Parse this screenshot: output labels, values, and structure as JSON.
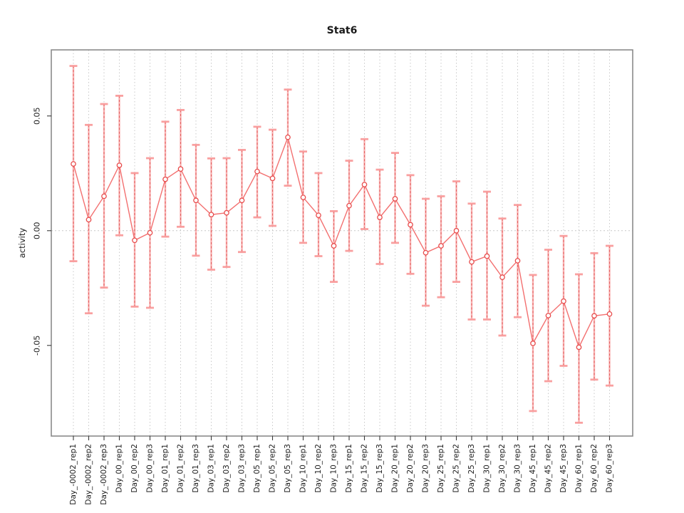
{
  "window": {
    "background": "#ffffff"
  },
  "chart_data": {
    "type": "line",
    "subtype": "points-with-error-bars",
    "title": "Stat6",
    "xlabel": "",
    "ylabel": "activity",
    "legend": null,
    "grid": {
      "vertical": "dotted at every category",
      "horizontal": "dotted at 0.00 only"
    },
    "marker": "open-circle",
    "error_bars": true,
    "ylim": [
      -0.0895,
      0.0788
    ],
    "yticks": [
      -0.05,
      0.0,
      0.05
    ],
    "ytick_labels": [
      "-0.05",
      "0.00",
      "0.05"
    ],
    "categories": [
      "Day_-0002_rep1",
      "Day_-0002_rep2",
      "Day_-0002_rep3",
      "Day_00_rep1",
      "Day_00_rep2",
      "Day_00_rep3",
      "Day_01_rep1",
      "Day_01_rep2",
      "Day_01_rep3",
      "Day_03_rep1",
      "Day_03_rep2",
      "Day_03_rep3",
      "Day_05_rep1",
      "Day_05_rep2",
      "Day_05_rep3",
      "Day_10_rep1",
      "Day_10_rep2",
      "Day_10_rep3",
      "Day_15_rep1",
      "Day_15_rep2",
      "Day_15_rep3",
      "Day_20_rep1",
      "Day_20_rep2",
      "Day_20_rep3",
      "Day_25_rep1",
      "Day_25_rep2",
      "Day_25_rep3",
      "Day_30_rep1",
      "Day_30_rep2",
      "Day_30_rep3",
      "Day_45_rep1",
      "Day_45_rep2",
      "Day_45_rep3",
      "Day_60_rep1",
      "Day_60_rep2",
      "Day_60_rep3"
    ],
    "series": [
      {
        "name": "activity",
        "values": [
          0.0291,
          0.0048,
          0.015,
          0.0285,
          -0.0042,
          -0.0009,
          0.0224,
          0.0269,
          0.0132,
          0.007,
          0.0078,
          0.0132,
          0.0258,
          0.0228,
          0.0407,
          0.0145,
          0.0067,
          -0.0066,
          0.0109,
          0.0201,
          0.0058,
          0.0139,
          0.0026,
          -0.0096,
          -0.0066,
          0.0,
          -0.0136,
          -0.0111,
          -0.0203,
          -0.0131,
          -0.0491,
          -0.037,
          -0.0307,
          -0.0508,
          -0.0371,
          -0.0363
        ],
        "upper": [
          0.0718,
          0.0461,
          0.0552,
          0.0588,
          0.0251,
          0.0316,
          0.0475,
          0.0526,
          0.0374,
          0.0315,
          0.0316,
          0.0352,
          0.0453,
          0.044,
          0.0615,
          0.0345,
          0.0251,
          0.0085,
          0.0305,
          0.0399,
          0.0266,
          0.0339,
          0.0242,
          0.0139,
          0.015,
          0.0215,
          0.0118,
          0.017,
          0.0053,
          0.0112,
          -0.0193,
          -0.0083,
          -0.0023,
          -0.019,
          -0.0098,
          -0.0066
        ],
        "lower": [
          -0.0133,
          -0.036,
          -0.0248,
          -0.002,
          -0.0331,
          -0.0336,
          -0.0026,
          0.0017,
          -0.0109,
          -0.017,
          -0.0158,
          -0.0093,
          0.0058,
          0.0021,
          0.0196,
          -0.0053,
          -0.0111,
          -0.0223,
          -0.0088,
          0.0007,
          -0.0145,
          -0.0053,
          -0.0188,
          -0.0327,
          -0.029,
          -0.0223,
          -0.0387,
          -0.0387,
          -0.0457,
          -0.0377,
          -0.0786,
          -0.0656,
          -0.0589,
          -0.0837,
          -0.0649,
          -0.0675
        ]
      }
    ],
    "colors": {
      "point_stroke": "#e84c4c",
      "point_fill": "#ffffff",
      "connect_line": "#f26060",
      "errorbar_stem_solid": "#f9a8a8",
      "errorbar_stem_dash": "#e05050",
      "errorbar_cap": "#f99b9b",
      "grid": "#c9c9c9",
      "frame": "#8a8a8a",
      "tick": "#3a3a3a",
      "text": "#1a1a1a"
    }
  }
}
